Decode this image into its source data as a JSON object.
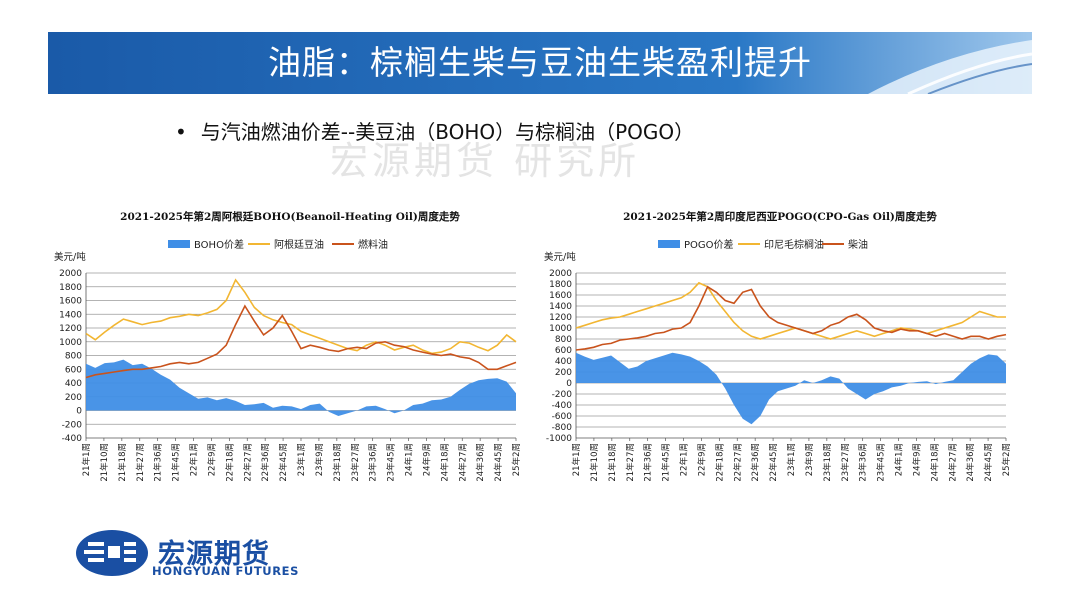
{
  "page": {
    "title": "油脂：棕榈生柴与豆油生柴盈利提升",
    "bullet": "与汽油燃油价差--美豆油（BOHO）与棕榈油（POGO）",
    "watermark": "宏源期货 研究所"
  },
  "logo": {
    "name_cn": "宏源期货",
    "name_en": "HONGYUAN FUTURES"
  },
  "colors": {
    "title_band": "#1e63b0",
    "spread_fill": "#3f8ee6",
    "soy_or_cpo_line": "#f2b632",
    "fuel_line": "#c9531c"
  },
  "chart_data": [
    {
      "type": "area",
      "title": "2021-2025年第2周阿根廷BOHO(Beanoil-Heating Oil)周度走势",
      "ylabel": "美元/吨",
      "ylim": [
        -400,
        2000
      ],
      "yticks": [
        -400,
        -200,
        0,
        200,
        400,
        600,
        800,
        1000,
        1200,
        1400,
        1600,
        1800,
        2000
      ],
      "legend_position": "top",
      "grid": true,
      "x_tick_labels": [
        "21年1周",
        "21年10周",
        "21年18周",
        "21年27周",
        "21年36周",
        "21年45周",
        "22年1周",
        "22年9周",
        "22年18周",
        "22年27周",
        "22年36周",
        "22年45周",
        "23年1周",
        "23年9周",
        "23年18周",
        "23年27周",
        "23年36周",
        "23年45周",
        "24年1周",
        "24年9周",
        "24年18周",
        "24年27周",
        "24年36周",
        "24年45周",
        "25年2周"
      ],
      "series": [
        {
          "name": "BOHO价差",
          "style": "area",
          "values": [
            680,
            620,
            690,
            700,
            740,
            660,
            680,
            610,
            520,
            450,
            330,
            250,
            170,
            190,
            150,
            180,
            140,
            80,
            90,
            110,
            40,
            70,
            60,
            20,
            80,
            100,
            -20,
            -80,
            -40,
            0,
            60,
            70,
            20,
            -40,
            0,
            80,
            100,
            150,
            160,
            200,
            300,
            390,
            440,
            460,
            470,
            420,
            250
          ]
        },
        {
          "name": "阿根廷豆油",
          "style": "line",
          "values": [
            1120,
            1030,
            1140,
            1240,
            1330,
            1290,
            1250,
            1280,
            1300,
            1350,
            1370,
            1400,
            1380,
            1420,
            1470,
            1600,
            1900,
            1720,
            1500,
            1380,
            1320,
            1280,
            1250,
            1150,
            1100,
            1050,
            1000,
            950,
            900,
            870,
            950,
            1000,
            950,
            880,
            920,
            950,
            880,
            830,
            850,
            900,
            1000,
            980,
            920,
            870,
            950,
            1100,
            1000
          ]
        },
        {
          "name": "燃料油",
          "style": "line",
          "values": [
            480,
            520,
            540,
            560,
            580,
            600,
            600,
            620,
            640,
            680,
            700,
            680,
            700,
            760,
            820,
            950,
            1250,
            1520,
            1300,
            1100,
            1200,
            1380,
            1150,
            900,
            950,
            920,
            880,
            860,
            900,
            920,
            900,
            980,
            1000,
            950,
            930,
            880,
            850,
            820,
            800,
            820,
            780,
            760,
            700,
            600,
            600,
            650,
            700
          ]
        }
      ]
    },
    {
      "type": "area",
      "title": "2021-2025年第2周印度尼西亚POGO(CPO-Gas Oil)周度走势",
      "ylabel": "美元/吨",
      "ylim": [
        -1000,
        2000
      ],
      "yticks": [
        -1000,
        -800,
        -600,
        -400,
        -200,
        0,
        200,
        400,
        600,
        800,
        1000,
        1200,
        1400,
        1600,
        1800,
        2000
      ],
      "legend_position": "top",
      "grid": true,
      "x_tick_labels": [
        "21年1周",
        "21年10周",
        "21年18周",
        "21年27周",
        "21年36周",
        "21年45周",
        "22年1周",
        "22年9周",
        "22年18周",
        "22年27周",
        "22年36周",
        "22年45周",
        "23年1周",
        "23年9周",
        "23年18周",
        "23年27周",
        "23年36周",
        "23年45周",
        "24年1周",
        "24年9周",
        "24年18周",
        "24年27周",
        "24年36周",
        "24年45周",
        "25年2周"
      ],
      "series": [
        {
          "name": "POGO价差",
          "style": "area",
          "values": [
            550,
            480,
            420,
            460,
            500,
            380,
            260,
            300,
            400,
            450,
            500,
            550,
            520,
            480,
            400,
            300,
            150,
            -100,
            -400,
            -650,
            -750,
            -600,
            -300,
            -150,
            -100,
            -50,
            50,
            0,
            50,
            120,
            80,
            -100,
            -200,
            -300,
            -200,
            -150,
            -80,
            -50,
            0,
            20,
            30,
            -20,
            20,
            50,
            200,
            350,
            450,
            520,
            500,
            350
          ]
        },
        {
          "name": "印尼毛棕榈油",
          "style": "line",
          "values": [
            1000,
            1050,
            1100,
            1150,
            1180,
            1200,
            1250,
            1300,
            1350,
            1400,
            1450,
            1500,
            1550,
            1650,
            1820,
            1750,
            1500,
            1300,
            1100,
            950,
            850,
            800,
            850,
            900,
            950,
            1000,
            950,
            900,
            850,
            800,
            850,
            900,
            950,
            900,
            850,
            900,
            950,
            1000,
            980,
            950,
            900,
            950,
            1000,
            1050,
            1100,
            1200,
            1300,
            1250,
            1200,
            1200
          ]
        },
        {
          "name": "柴油",
          "style": "line",
          "values": [
            600,
            620,
            650,
            700,
            720,
            780,
            800,
            820,
            850,
            900,
            920,
            980,
            1000,
            1100,
            1400,
            1750,
            1650,
            1500,
            1450,
            1650,
            1700,
            1400,
            1200,
            1100,
            1050,
            1000,
            950,
            900,
            950,
            1050,
            1100,
            1200,
            1250,
            1150,
            1000,
            950,
            920,
            980,
            950,
            950,
            900,
            850,
            900,
            850,
            800,
            850,
            850,
            800,
            850,
            880
          ]
        }
      ]
    }
  ]
}
